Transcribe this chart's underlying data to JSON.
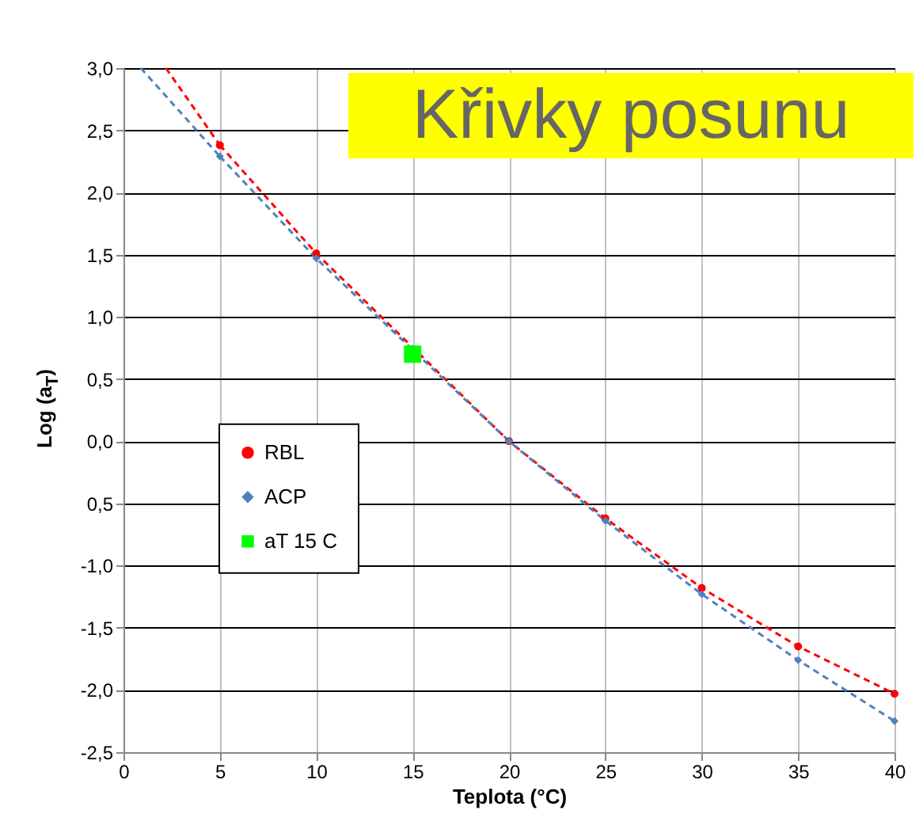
{
  "chart_data": {
    "type": "line",
    "title": "Křivky posunu",
    "xlabel": "Teplota  (°C)",
    "ylabel": "Log (a$_{T}$)",
    "xlim": [
      0,
      40
    ],
    "xticks": [
      0,
      5,
      10,
      15,
      20,
      25,
      30,
      35,
      40
    ],
    "ylim": [
      -2.5,
      3.0
    ],
    "yticks": [
      {
        "value": -2.5,
        "label": "-2,5"
      },
      {
        "value": -2,
        "label": "-2,0"
      },
      {
        "value": -1.5,
        "label": "-1,5"
      },
      {
        "value": -1,
        "label": "-1,0"
      },
      {
        "value": -0.5,
        "label": "0,5"
      },
      {
        "value": 0,
        "label": "0,0"
      },
      {
        "value": 0.5,
        "label": "0,5"
      },
      {
        "value": 1,
        "label": "1,0"
      },
      {
        "value": 1.5,
        "label": "1,5"
      },
      {
        "value": 2,
        "label": "2,0"
      },
      {
        "value": 2.5,
        "label": "2,5"
      },
      {
        "value": 3,
        "label": "3,0"
      }
    ],
    "grid": true,
    "legend": "left",
    "series": [
      {
        "name": "RBL",
        "type": "line",
        "color": "#ff0000",
        "marker": "circle",
        "line_style": "dashed",
        "x": [
          5,
          10,
          20,
          25,
          30,
          35,
          40
        ],
        "values": [
          2.38,
          1.51,
          0,
          -0.62,
          -1.18,
          -1.65,
          -2.03
        ]
      },
      {
        "name": "ACP",
        "type": "line",
        "color": "#4f81bd",
        "marker": "diamond",
        "line_style": "dashed",
        "x": [
          5,
          10,
          20,
          25,
          30,
          35,
          40
        ],
        "values": [
          2.29,
          1.47,
          0,
          -0.64,
          -1.23,
          -1.76,
          -2.25
        ]
      },
      {
        "name": "aT 15 C",
        "type": "scatter",
        "color": "#00ff00",
        "marker": "square",
        "x": [
          15
        ],
        "values": [
          0.7
        ]
      },
      {
        "type": "line",
        "color": "#ff0000",
        "marker": "none",
        "line_style": "dashed",
        "x": [
          2.2,
          5
        ],
        "values": [
          3.0,
          2.38
        ]
      },
      {
        "type": "line",
        "color": "#4f81bd",
        "marker": "none",
        "line_style": "dashed",
        "x": [
          0.9,
          5
        ],
        "values": [
          3.0,
          2.29
        ]
      }
    ]
  }
}
